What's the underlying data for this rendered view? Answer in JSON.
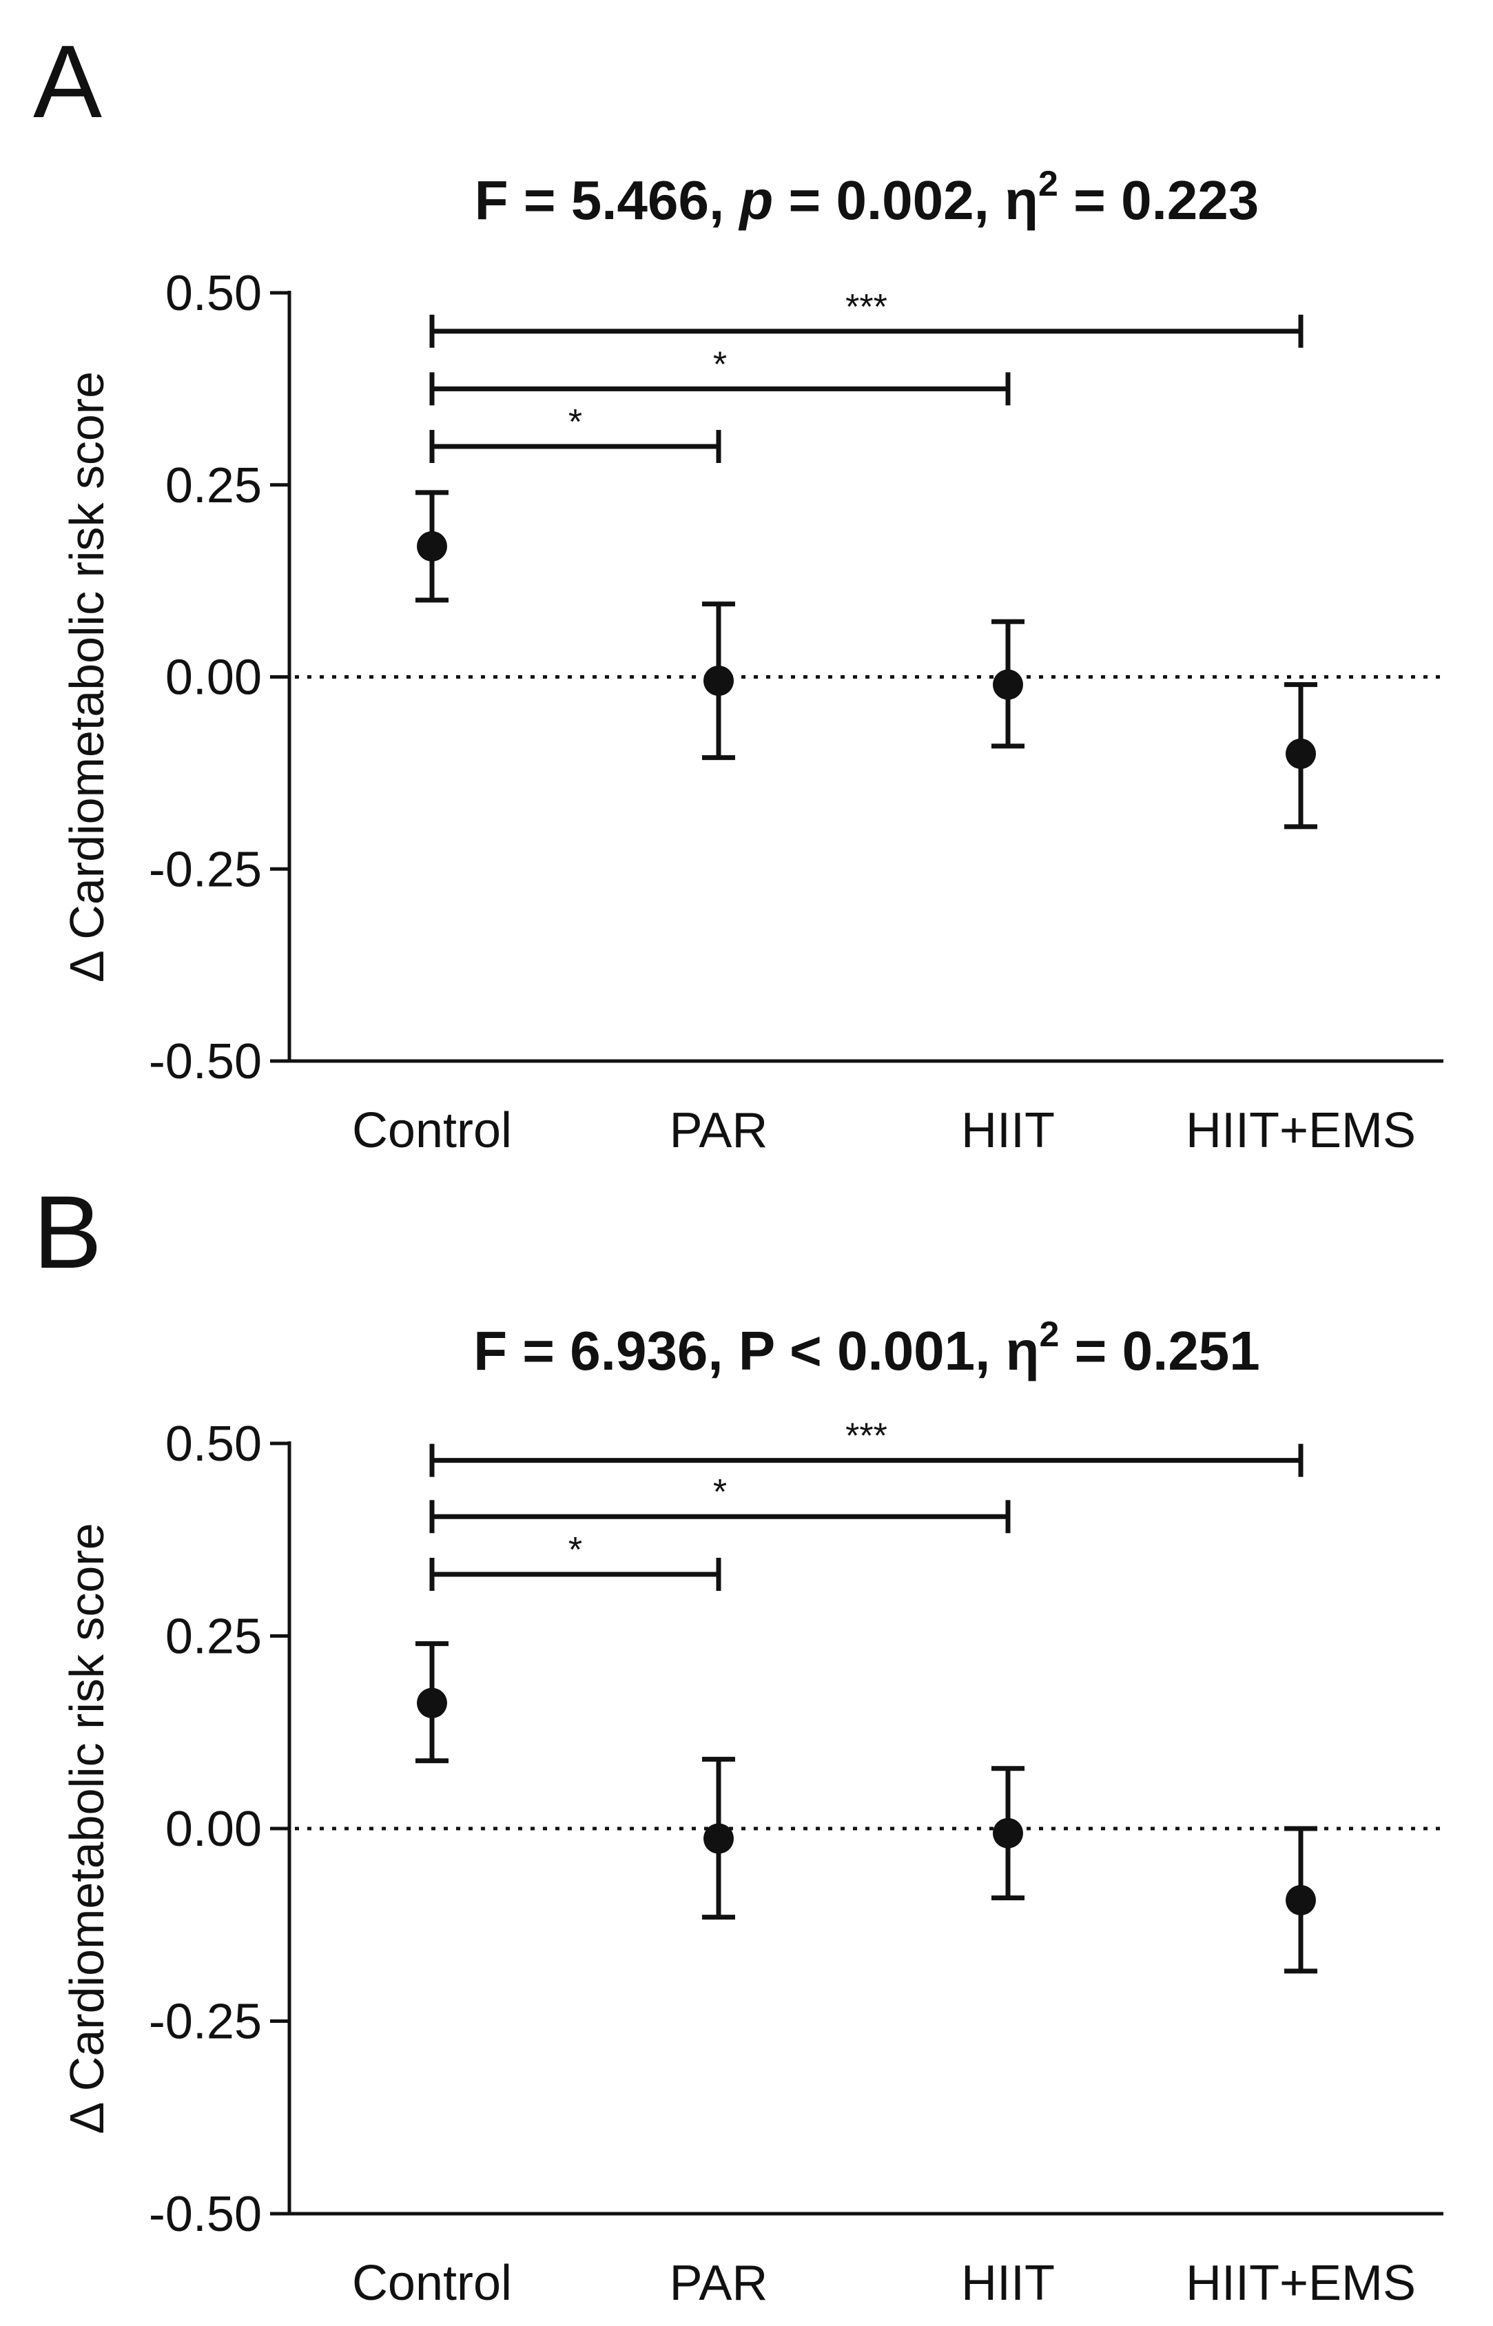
{
  "chart_data": [
    {
      "type": "scatter",
      "panel": "A",
      "title": {
        "prefix": "F = 5.466, ",
        "p_symbol": "p",
        "p_italic": true,
        "p_text": " = 0.002, ",
        "eta": "η",
        "eta_sup": "2",
        "eta_value": " = 0.223"
      },
      "ylabel": "Δ Cardiometabolic risk score",
      "xlabel": "",
      "ylim": [
        -0.5,
        0.5
      ],
      "yticks": [
        0.5,
        0.25,
        0.0,
        -0.25,
        -0.5
      ],
      "ytick_labels": [
        "0.50",
        "0.25",
        "0.00",
        "-0.25",
        "-0.50"
      ],
      "reference_line": 0.0,
      "categories": [
        "Control",
        "PAR",
        "HIIT",
        "HIIT+EMS"
      ],
      "values": [
        0.17,
        -0.005,
        -0.01,
        -0.1
      ],
      "error_low": [
        0.1,
        -0.105,
        -0.09,
        -0.195
      ],
      "error_high": [
        0.24,
        0.095,
        0.072,
        -0.01
      ],
      "significance": [
        {
          "from": 0,
          "to": 3,
          "label": "***",
          "y": 0.45
        },
        {
          "from": 0,
          "to": 2,
          "label": "*",
          "y": 0.375
        },
        {
          "from": 0,
          "to": 1,
          "label": "*",
          "y": 0.3
        }
      ]
    },
    {
      "type": "scatter",
      "panel": "B",
      "title": {
        "prefix": "F = 6.936, ",
        "p_symbol": "P",
        "p_italic": false,
        "p_text": " < 0.001, ",
        "eta": "η",
        "eta_sup": "2",
        "eta_value": " = 0.251"
      },
      "ylabel": "Δ Cardiometabolic risk score",
      "xlabel": "",
      "ylim": [
        -0.5,
        0.5
      ],
      "yticks": [
        0.5,
        0.25,
        0.0,
        -0.25,
        -0.5
      ],
      "ytick_labels": [
        "0.50",
        "0.25",
        "0.00",
        "-0.25",
        "-0.50"
      ],
      "reference_line": 0.0,
      "categories": [
        "Control",
        "PAR",
        "HIIT",
        "HIIT+EMS"
      ],
      "values": [
        0.163,
        -0.013,
        -0.006,
        -0.093
      ],
      "error_low": [
        0.088,
        -0.115,
        -0.09,
        -0.185
      ],
      "error_high": [
        0.24,
        0.09,
        0.078,
        0.0
      ],
      "significance": [
        {
          "from": 0,
          "to": 3,
          "label": "***",
          "y": 0.478
        },
        {
          "from": 0,
          "to": 2,
          "label": "*",
          "y": 0.405
        },
        {
          "from": 0,
          "to": 1,
          "label": "*",
          "y": 0.33
        }
      ]
    }
  ]
}
